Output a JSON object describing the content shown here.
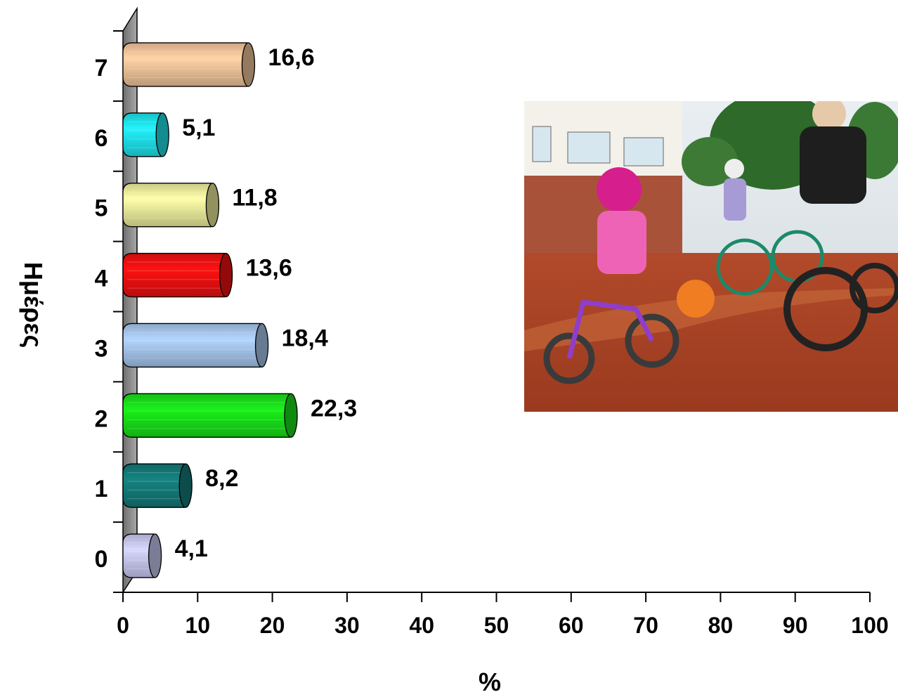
{
  "chart_data": {
    "type": "bar",
    "orientation": "horizontal",
    "style": "3d-cylinder",
    "categories": [
      "0",
      "1",
      "2",
      "3",
      "4",
      "5",
      "6",
      "7"
    ],
    "values": [
      4.1,
      8.2,
      22.3,
      18.4,
      13.6,
      11.8,
      5.1,
      16.6
    ],
    "value_labels": [
      "4,1",
      "8,2",
      "22,3",
      "18,4",
      "13,6",
      "11,8",
      "5,1",
      "16,6"
    ],
    "bar_colors": [
      "#c8c8f2",
      "#137a78",
      "#17e017",
      "#a6c6ec",
      "#ee1010",
      "#ecec9c",
      "#1ee2ea",
      "#f2c49a"
    ],
    "xlabel": "%",
    "ylabel": "Ημέρες",
    "xlim": [
      0,
      100
    ],
    "xticks": [
      0,
      10,
      20,
      30,
      40,
      50,
      60,
      70,
      80,
      90,
      100
    ],
    "grid": false,
    "legend": "none"
  },
  "inset_photo": {
    "subject": "children riding bicycles, girl in pink helmet with orange balloon"
  }
}
